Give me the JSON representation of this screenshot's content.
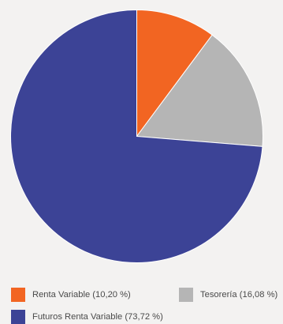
{
  "chart_data": {
    "type": "pie",
    "slices": [
      {
        "label": "Renta Variable",
        "legend": "Renta Variable (10,20 %)",
        "value": 10.2,
        "color": "#f26522"
      },
      {
        "label": "Tesorería",
        "legend": "Tesorería (16,08 %)",
        "value": 16.08,
        "color": "#b5b5b5"
      },
      {
        "label": "Futuros Renta Variable",
        "legend": "Futuros Renta Variable (73,72 %)",
        "value": 73.72,
        "color": "#3c4396"
      }
    ],
    "start_angle_deg": 0,
    "direction": "clockwise",
    "legend_position": "bottom"
  }
}
